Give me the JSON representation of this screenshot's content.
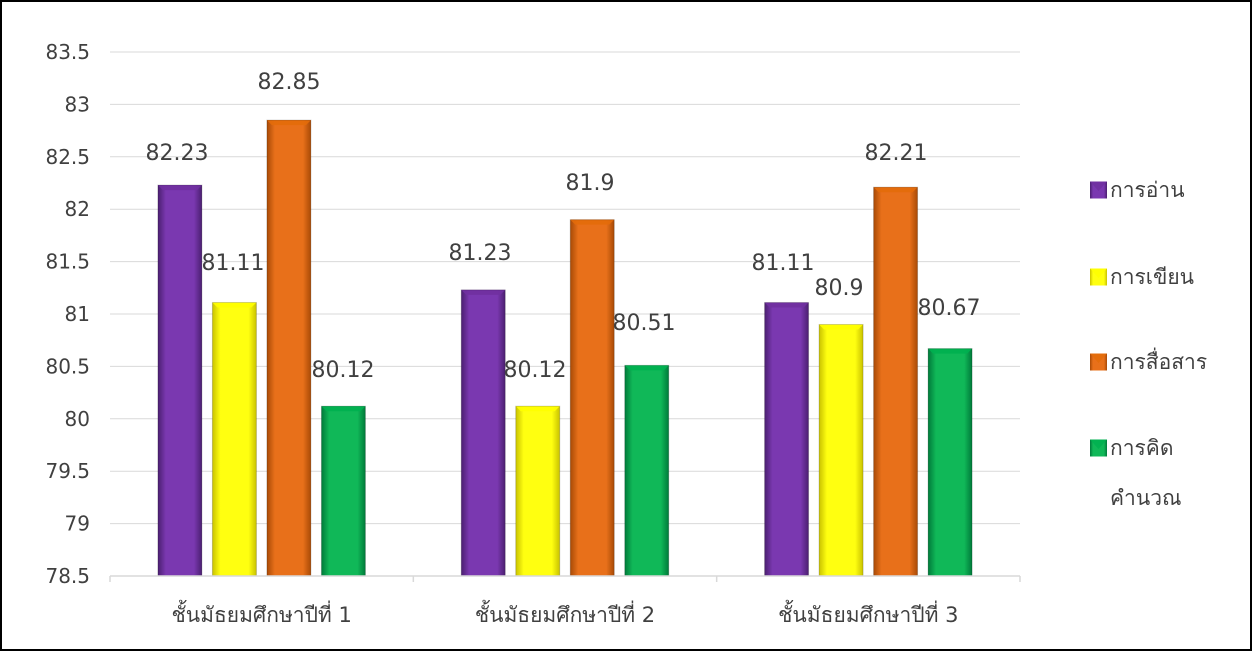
{
  "chart_data": {
    "type": "bar",
    "title": "",
    "xlabel": "",
    "ylabel": "",
    "categories": [
      "ชั้นมัธยมศึกษาปีที่ 1",
      "ชั้นมัธยมศึกษาปีที่ 2",
      "ชั้นมัธยมศึกษาปีที่ 3"
    ],
    "series": [
      {
        "name": "การอ่าน",
        "values": [
          82.23,
          81.23,
          81.11
        ],
        "labels": [
          "82.23",
          "81.23",
          "81.11"
        ],
        "color": "#7030A0"
      },
      {
        "name": "การเขียน",
        "values": [
          81.11,
          80.12,
          80.9
        ],
        "labels": [
          "81.11",
          "80.12",
          "80.9"
        ],
        "color": "#FFFF00"
      },
      {
        "name": "การสื่อสาร",
        "values": [
          82.85,
          81.9,
          82.21
        ],
        "labels": [
          "82.85",
          "81.9",
          "82.21"
        ],
        "color": "#E36C0A"
      },
      {
        "name_lines": [
          "การคิด",
          "คำนวณ"
        ],
        "values": [
          80.12,
          80.51,
          80.67
        ],
        "labels": [
          "80.12",
          "80.51",
          "80.67"
        ],
        "color": "#00B050"
      }
    ],
    "ylim": [
      78.5,
      83.5
    ],
    "yticks": [
      "78.5",
      "79",
      "79.5",
      "80",
      "80.5",
      "81",
      "81.5",
      "82",
      "82.5",
      "83",
      "83.5"
    ],
    "grid": true,
    "legend": "right"
  }
}
